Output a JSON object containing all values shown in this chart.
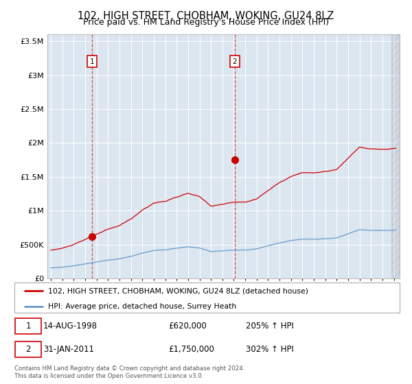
{
  "title": "102, HIGH STREET, CHOBHAM, WOKING, GU24 8LZ",
  "subtitle": "Price paid vs. HM Land Registry's House Price Index (HPI)",
  "bg_color": "#dce6f0",
  "plot_bg_color": "#dce6f0",
  "legend_label_red": "102, HIGH STREET, CHOBHAM, WOKING, GU24 8LZ (detached house)",
  "legend_label_blue": "HPI: Average price, detached house, Surrey Heath",
  "footer": "Contains HM Land Registry data © Crown copyright and database right 2024.\nThis data is licensed under the Open Government Licence v3.0.",
  "purchase1_year": 1998.62,
  "purchase1_price": 620000,
  "purchase2_year": 2011.08,
  "purchase2_price": 1750000,
  "ylim": [
    0,
    3600000
  ],
  "xlim_start": 1994.7,
  "xlim_end": 2025.5,
  "red_color": "#cc0000",
  "blue_color": "#6699cc",
  "dashed_color": "#cc3333",
  "hpi_base_year": 1998.62,
  "hpi_base_price": 620000,
  "hpi2_base_year": 2011.08,
  "hpi2_base_price": 1750000
}
